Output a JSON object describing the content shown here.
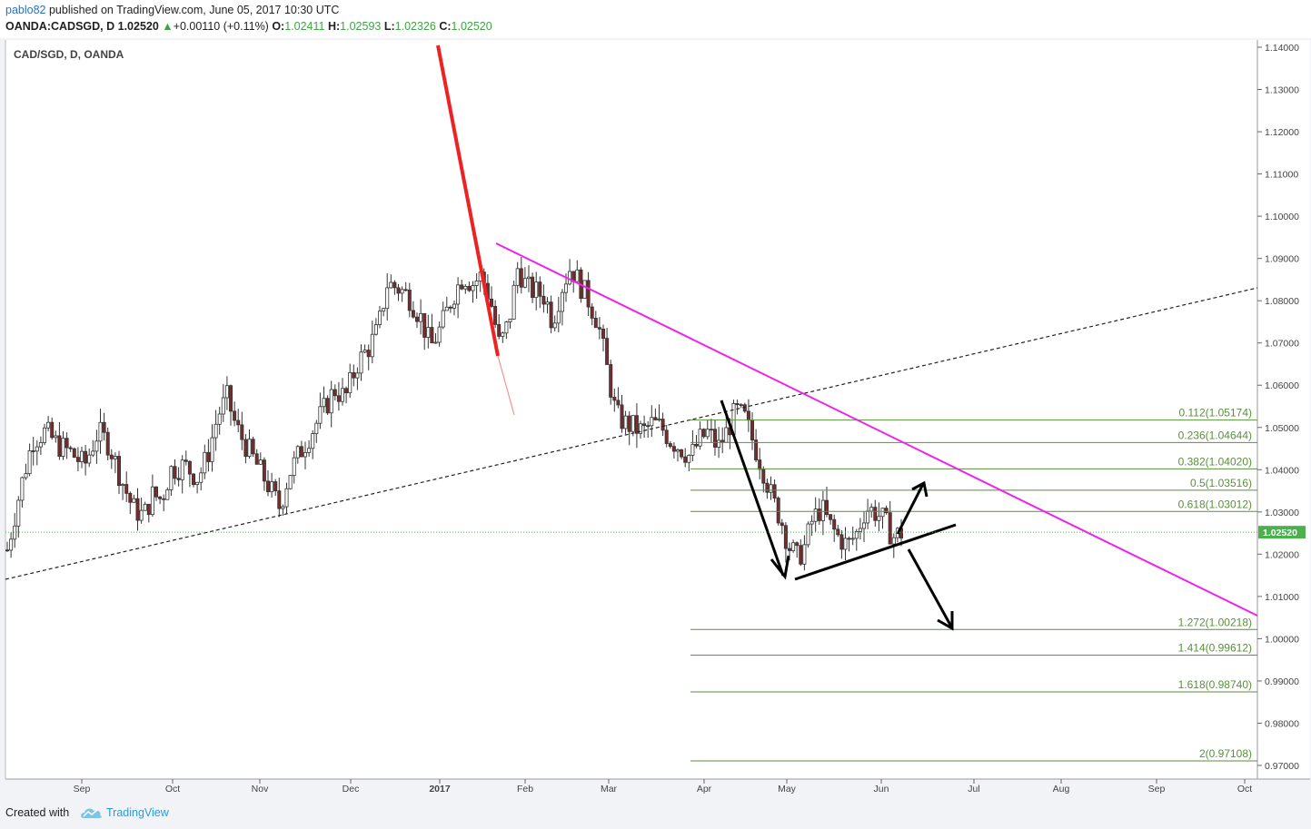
{
  "header": {
    "author": "pablo82",
    "published_text": " published on TradingView.com, June 05, 2017 10:30 UTC",
    "symbol": "OANDA:CADSGD, D",
    "last": "1.02520",
    "change_arrow": "▲",
    "change": "+0.00110 (+0.11%)",
    "o_label": "O:",
    "o_value": "1.02411",
    "h_label": "H:",
    "h_value": "1.02593",
    "l_label": "L:",
    "l_value": "1.02326",
    "c_label": "C:",
    "c_value": "1.02520"
  },
  "footer": {
    "created_with": "Created with",
    "brand": "TradingView",
    "logo_icon": "tradingview-cloud-icon"
  },
  "chart_data": {
    "type": "candlestick",
    "title": "CAD/SGD, D, OANDA",
    "ylim": [
      0.966,
      1.142
    ],
    "y_ticks": [
      "1.14000",
      "1.13000",
      "1.12000",
      "1.11000",
      "1.10000",
      "1.09000",
      "1.08000",
      "1.07000",
      "1.06000",
      "1.05000",
      "1.04000",
      "1.03000",
      "1.02000",
      "1.01000",
      "1.00000",
      "0.99000",
      "0.98000",
      "0.97000"
    ],
    "x_ticks": [
      "Sep",
      "Oct",
      "Nov",
      "Dec",
      "2017",
      "Feb",
      "Mar",
      "Apr",
      "May",
      "Jun",
      "Jul",
      "Aug",
      "Sep",
      "Oct"
    ],
    "last_price_label": "1.02520",
    "last_price": 1.0252,
    "colors": {
      "up": "#ffffff",
      "down": "#7a2b2b",
      "wick": "#333333",
      "fib": "#5a8f3c",
      "trend_magenta": "#ee22ee",
      "trend_red": "#ee2222",
      "last_price_bg": "#4caf50"
    },
    "fib_levels": [
      {
        "label": "0.112(1.05174)",
        "value": 1.05174
      },
      {
        "label": "0.236(1.04644)",
        "value": 1.04644
      },
      {
        "label": "0.382(1.04020)",
        "value": 1.0402
      },
      {
        "label": "0.5(1.03516)",
        "value": 1.03516
      },
      {
        "label": "0.618(1.03012)",
        "value": 1.03012
      },
      {
        "label": "1.272(1.00218)",
        "value": 1.00218
      },
      {
        "label": "1.414(0.99612)",
        "value": 0.99612
      },
      {
        "label": "1.618(0.98740)",
        "value": 0.9874
      },
      {
        "label": "2(0.97108)",
        "value": 0.97108
      }
    ],
    "price_path": [
      [
        0,
        1.021
      ],
      [
        15,
        1.036
      ],
      [
        28,
        1.047
      ],
      [
        42,
        1.049
      ],
      [
        55,
        1.046
      ],
      [
        70,
        1.044
      ],
      [
        85,
        1.041
      ],
      [
        100,
        1.049
      ],
      [
        112,
        1.046
      ],
      [
        125,
        1.038
      ],
      [
        138,
        1.031
      ],
      [
        150,
        1.029
      ],
      [
        160,
        1.034
      ],
      [
        170,
        1.033
      ],
      [
        180,
        1.04
      ],
      [
        195,
        1.041
      ],
      [
        210,
        1.038
      ],
      [
        220,
        1.043
      ],
      [
        232,
        1.053
      ],
      [
        242,
        1.057
      ],
      [
        252,
        1.05
      ],
      [
        262,
        1.046
      ],
      [
        275,
        1.041
      ],
      [
        288,
        1.036
      ],
      [
        300,
        1.031
      ],
      [
        310,
        1.039
      ],
      [
        322,
        1.044
      ],
      [
        335,
        1.049
      ],
      [
        348,
        1.054
      ],
      [
        360,
        1.059
      ],
      [
        372,
        1.057
      ],
      [
        385,
        1.065
      ],
      [
        398,
        1.069
      ],
      [
        408,
        1.073
      ],
      [
        418,
        1.084
      ],
      [
        430,
        1.083
      ],
      [
        442,
        1.081
      ],
      [
        455,
        1.076
      ],
      [
        466,
        1.069
      ],
      [
        478,
        1.074
      ],
      [
        490,
        1.081
      ],
      [
        502,
        1.086
      ],
      [
        512,
        1.084
      ],
      [
        522,
        1.086
      ],
      [
        532,
        1.08
      ],
      [
        542,
        1.069
      ],
      [
        552,
        1.075
      ],
      [
        562,
        1.088
      ],
      [
        572,
        1.083
      ],
      [
        582,
        1.082
      ],
      [
        592,
        1.081
      ],
      [
        600,
        1.075
      ],
      [
        610,
        1.083
      ],
      [
        620,
        1.088
      ],
      [
        630,
        1.084
      ],
      [
        640,
        1.08
      ],
      [
        650,
        1.075
      ],
      [
        660,
        1.064
      ],
      [
        670,
        1.053
      ],
      [
        680,
        1.051
      ],
      [
        690,
        1.05
      ],
      [
        700,
        1.049
      ],
      [
        710,
        1.051
      ],
      [
        720,
        1.05
      ],
      [
        730,
        1.047
      ],
      [
        742,
        1.045
      ],
      [
        752,
        1.043
      ],
      [
        762,
        1.047
      ],
      [
        772,
        1.049
      ],
      [
        782,
        1.045
      ],
      [
        792,
        1.049
      ],
      [
        802,
        1.054
      ],
      [
        812,
        1.052
      ],
      [
        822,
        1.046
      ],
      [
        832,
        1.04
      ],
      [
        842,
        1.033
      ],
      [
        852,
        1.028
      ],
      [
        860,
        1.022
      ],
      [
        870,
        1.019
      ],
      [
        878,
        1.022
      ],
      [
        886,
        1.028
      ],
      [
        896,
        1.031
      ],
      [
        905,
        1.027
      ],
      [
        915,
        1.024
      ],
      [
        925,
        1.022
      ],
      [
        935,
        1.025
      ],
      [
        945,
        1.031
      ],
      [
        955,
        1.03
      ],
      [
        965,
        1.028
      ],
      [
        975,
        1.024
      ],
      [
        985,
        1.0252
      ]
    ]
  }
}
